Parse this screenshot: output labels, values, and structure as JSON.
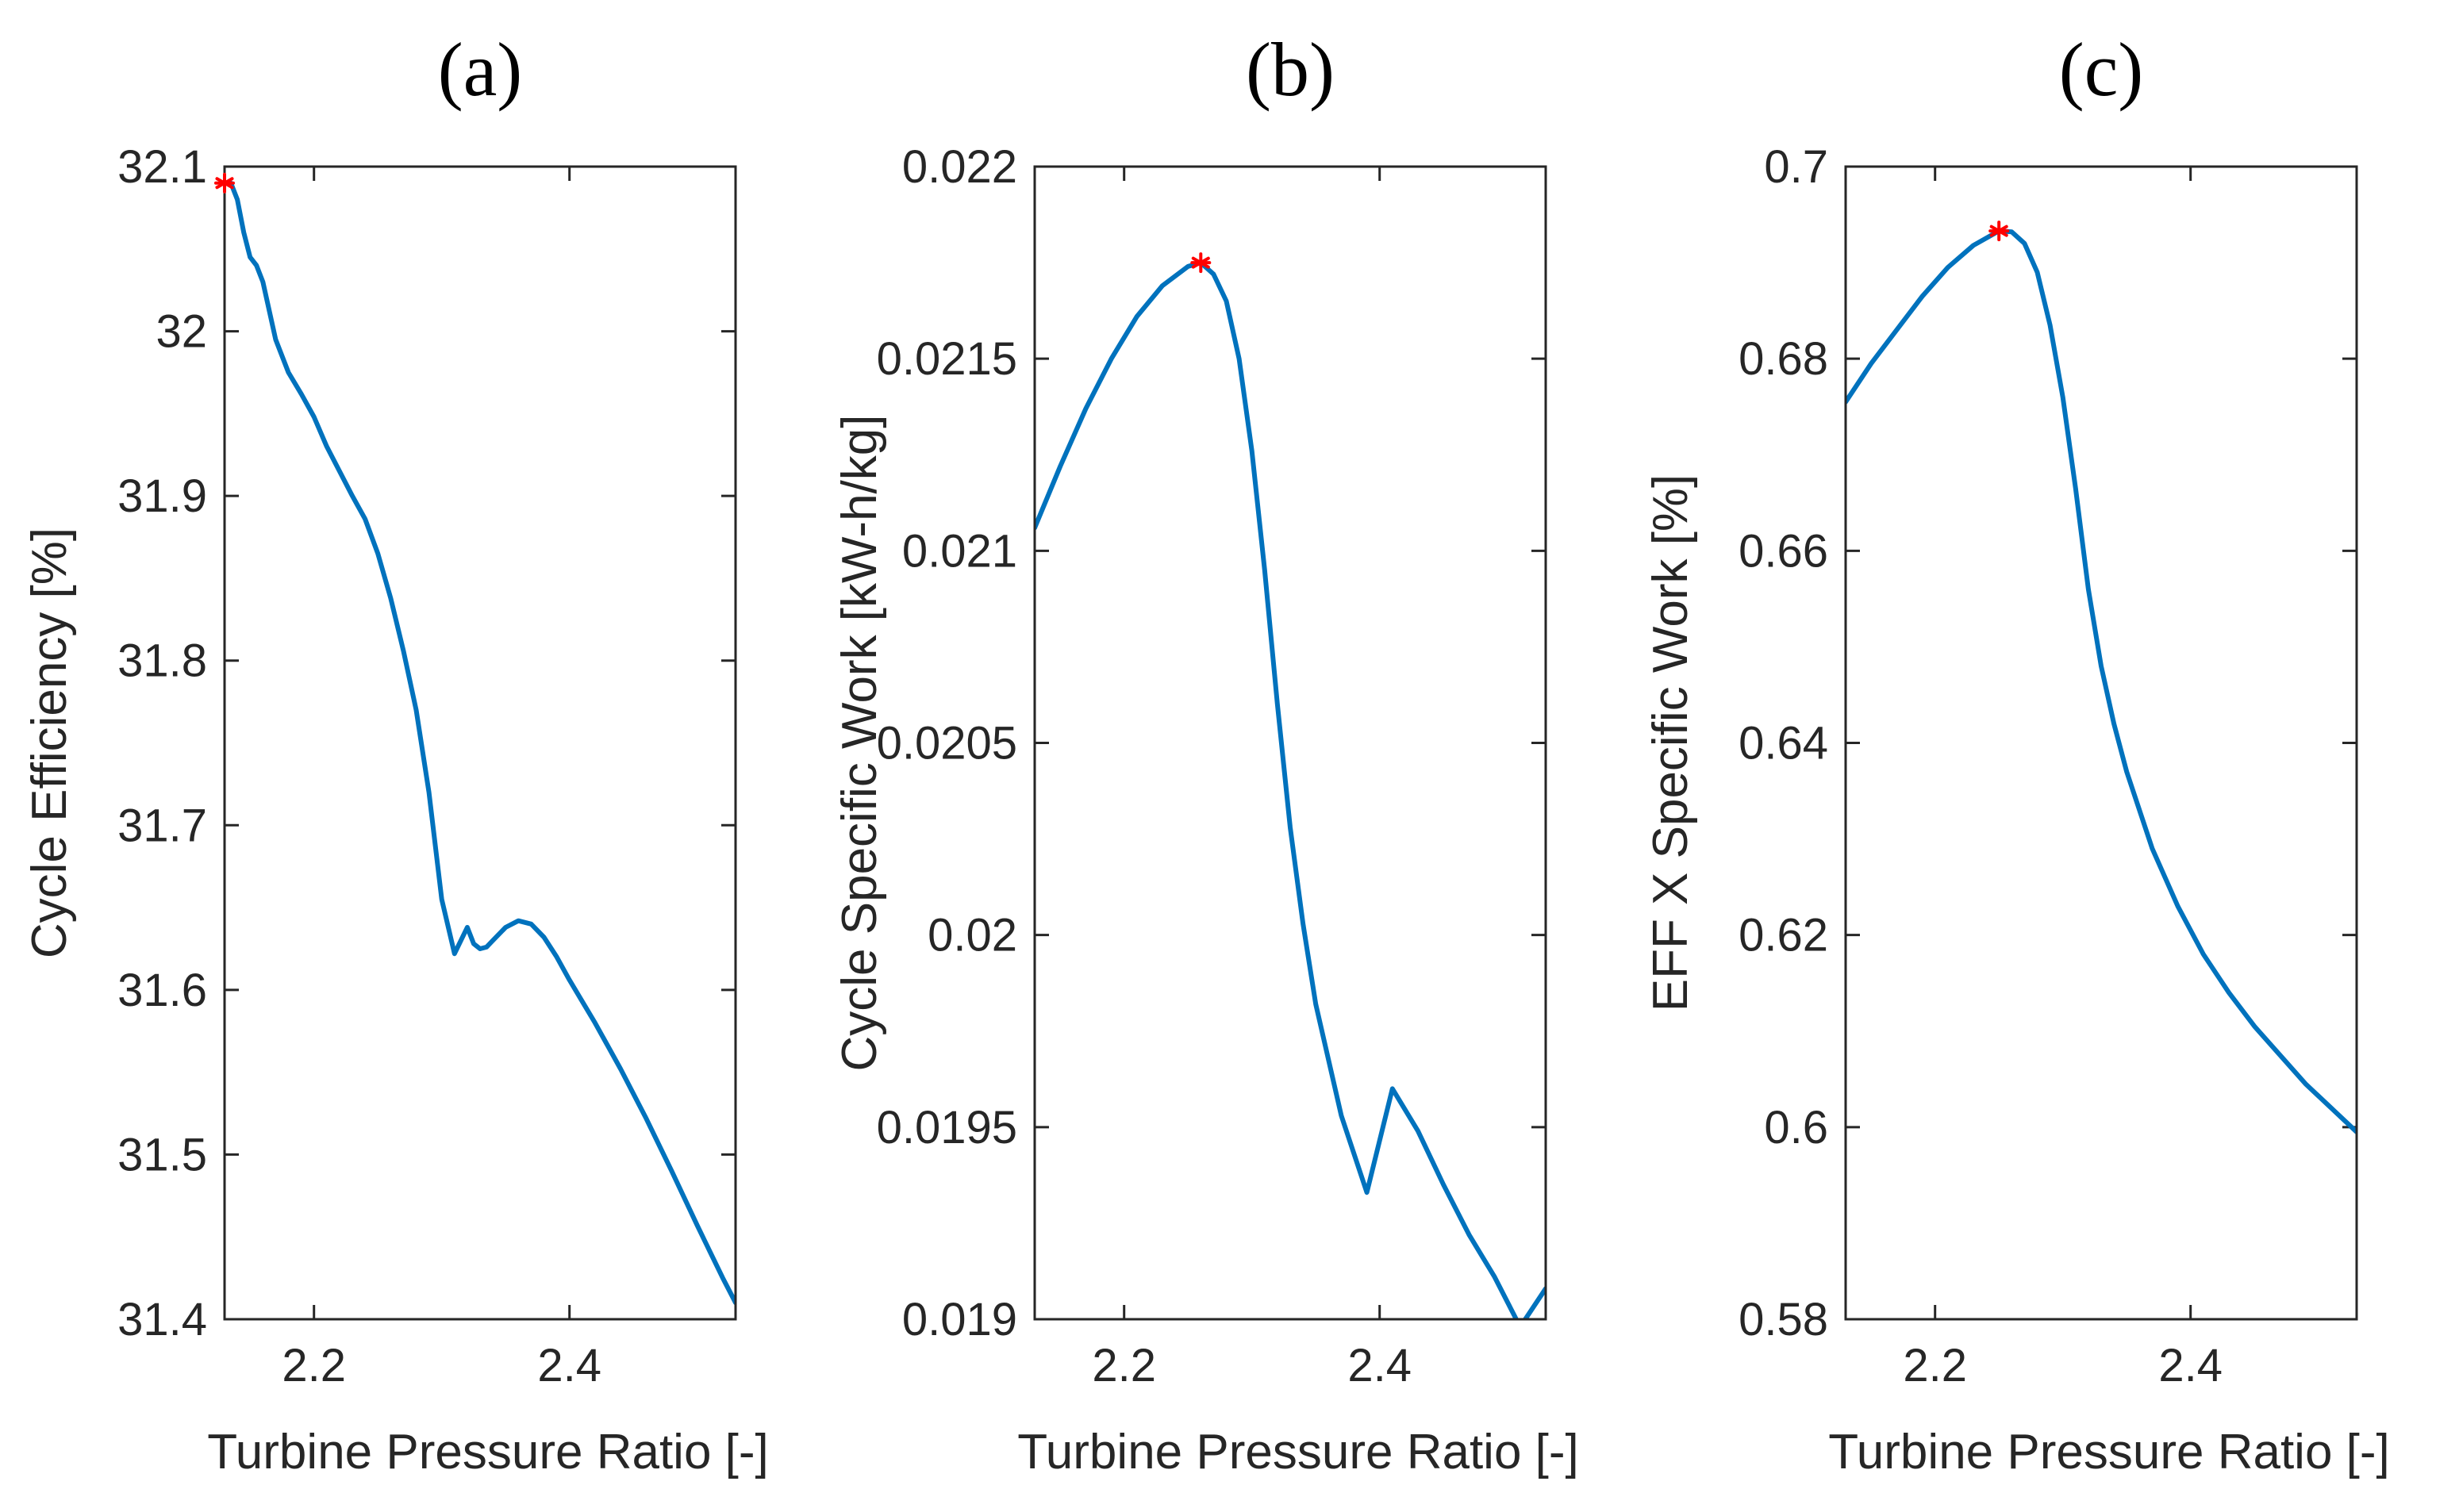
{
  "chart_data": [
    {
      "type": "line",
      "panel_label": "(a)",
      "xlabel": "Turbine Pressure Ratio [-]",
      "ylabel": "Cycle Efficiency [%]",
      "xlim": [
        2.13,
        2.53
      ],
      "ylim": [
        31.4,
        32.1
      ],
      "x_ticks": [
        2.2,
        2.4
      ],
      "x_tick_labels": [
        "2.2",
        "2.4"
      ],
      "y_ticks": [
        31.4,
        31.5,
        31.6,
        31.7,
        31.8,
        31.9,
        32.0,
        32.1
      ],
      "y_tick_labels": [
        "31.4",
        "31.5",
        "31.6",
        "31.7",
        "31.8",
        "31.9",
        "32",
        "32.1"
      ],
      "series": [
        {
          "name": "Cycle Efficiency",
          "color": "#0072BD",
          "x": [
            2.13,
            2.135,
            2.14,
            2.145,
            2.15,
            2.155,
            2.16,
            2.17,
            2.18,
            2.19,
            2.2,
            2.21,
            2.22,
            2.23,
            2.24,
            2.25,
            2.26,
            2.27,
            2.28,
            2.29,
            2.3,
            2.31,
            2.32,
            2.325,
            2.33,
            2.335,
            2.34,
            2.35,
            2.36,
            2.37,
            2.38,
            2.39,
            2.4,
            2.42,
            2.44,
            2.46,
            2.48,
            2.5,
            2.52,
            2.53
          ],
          "y": [
            32.09,
            32.09,
            32.08,
            32.06,
            32.045,
            32.04,
            32.03,
            31.995,
            31.975,
            31.962,
            31.948,
            31.93,
            31.915,
            31.9,
            31.886,
            31.865,
            31.838,
            31.806,
            31.77,
            31.72,
            31.655,
            31.622,
            31.638,
            31.628,
            31.625,
            31.626,
            31.63,
            31.638,
            31.642,
            31.64,
            31.632,
            31.62,
            31.606,
            31.58,
            31.552,
            31.522,
            31.49,
            31.457,
            31.425,
            31.41
          ]
        }
      ],
      "max_marker": {
        "x": 2.13,
        "y": 32.09,
        "color": "#FF0000"
      }
    },
    {
      "type": "line",
      "panel_label": "(b)",
      "xlabel": "Turbine Pressure Ratio [-]",
      "ylabel": "Cycle Specific Work [kW-h/kg]",
      "xlim": [
        2.13,
        2.53
      ],
      "ylim": [
        0.019,
        0.022
      ],
      "x_ticks": [
        2.2,
        2.4
      ],
      "x_tick_labels": [
        "2.2",
        "2.4"
      ],
      "y_ticks": [
        0.019,
        0.0195,
        0.02,
        0.0205,
        0.021,
        0.0215,
        0.022
      ],
      "y_tick_labels": [
        "0.019",
        "0.0195",
        "0.02",
        "0.0205",
        "0.021",
        "0.0215",
        "0.022"
      ],
      "series": [
        {
          "name": "Cycle Specific Work",
          "color": "#0072BD",
          "x": [
            2.13,
            2.15,
            2.17,
            2.19,
            2.21,
            2.23,
            2.25,
            2.26,
            2.27,
            2.28,
            2.29,
            2.3,
            2.31,
            2.32,
            2.33,
            2.34,
            2.35,
            2.37,
            2.39,
            2.41,
            2.43,
            2.45,
            2.47,
            2.49,
            2.51,
            2.53
          ],
          "y": [
            0.02106,
            0.02122,
            0.02137,
            0.0215,
            0.02161,
            0.02169,
            0.02174,
            0.02175,
            0.02172,
            0.02165,
            0.0215,
            0.02126,
            0.02095,
            0.0206,
            0.02028,
            0.02003,
            0.01982,
            0.01953,
            0.01933,
            0.0196,
            0.01949,
            0.01935,
            0.01922,
            0.01911,
            0.01898,
            0.01908
          ]
        }
      ],
      "max_marker": {
        "x": 2.26,
        "y": 0.02175,
        "color": "#FF0000"
      }
    },
    {
      "type": "line",
      "panel_label": "(c)",
      "xlabel": "Turbine Pressure Ratio [-]",
      "ylabel": "EFF X Specific Work [%]",
      "xlim": [
        2.13,
        2.53
      ],
      "ylim": [
        0.58,
        0.7
      ],
      "x_ticks": [
        2.2,
        2.4
      ],
      "x_tick_labels": [
        "2.2",
        "2.4"
      ],
      "y_ticks": [
        0.58,
        0.6,
        0.62,
        0.64,
        0.66,
        0.68,
        0.7
      ],
      "y_tick_labels": [
        "0.58",
        "0.6",
        "0.62",
        "0.64",
        "0.66",
        "0.68",
        "0.7"
      ],
      "series": [
        {
          "name": "EFF X Specific Work",
          "color": "#0072BD",
          "x": [
            2.13,
            2.15,
            2.17,
            2.19,
            2.21,
            2.23,
            2.25,
            2.26,
            2.27,
            2.28,
            2.29,
            2.3,
            2.31,
            2.32,
            2.33,
            2.34,
            2.35,
            2.37,
            2.39,
            2.41,
            2.43,
            2.45,
            2.47,
            2.49,
            2.51,
            2.53
          ],
          "y": [
            0.6755,
            0.6795,
            0.683,
            0.6865,
            0.6895,
            0.6918,
            0.6933,
            0.6932,
            0.692,
            0.689,
            0.6835,
            0.676,
            0.6665,
            0.656,
            0.648,
            0.642,
            0.637,
            0.629,
            0.623,
            0.618,
            0.614,
            0.6105,
            0.6075,
            0.6045,
            0.602,
            0.5995
          ]
        }
      ],
      "max_marker": {
        "x": 2.25,
        "y": 0.6933,
        "color": "#FF0000"
      }
    }
  ]
}
